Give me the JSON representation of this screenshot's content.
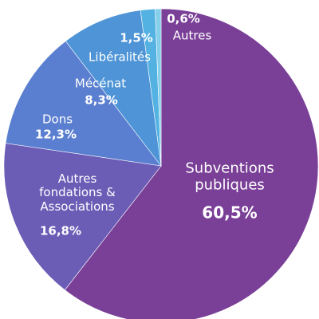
{
  "chart_data": {
    "type": "pie",
    "categories": [
      "Subventions publiques",
      "Autres fondations & Associations",
      "Dons",
      "Mécénat",
      "Libéralités",
      "Autres"
    ],
    "values": [
      60.5,
      16.8,
      12.3,
      8.3,
      1.5,
      0.6
    ],
    "value_labels": [
      "60,5%",
      "16,8%",
      "12,3%",
      "8,3%",
      "1,5%",
      "0,6%"
    ],
    "colors": [
      "#7a3f97",
      "#6b5cb6",
      "#5b7fd0",
      "#4e94d6",
      "#54b2e2",
      "#86cfea"
    ]
  }
}
